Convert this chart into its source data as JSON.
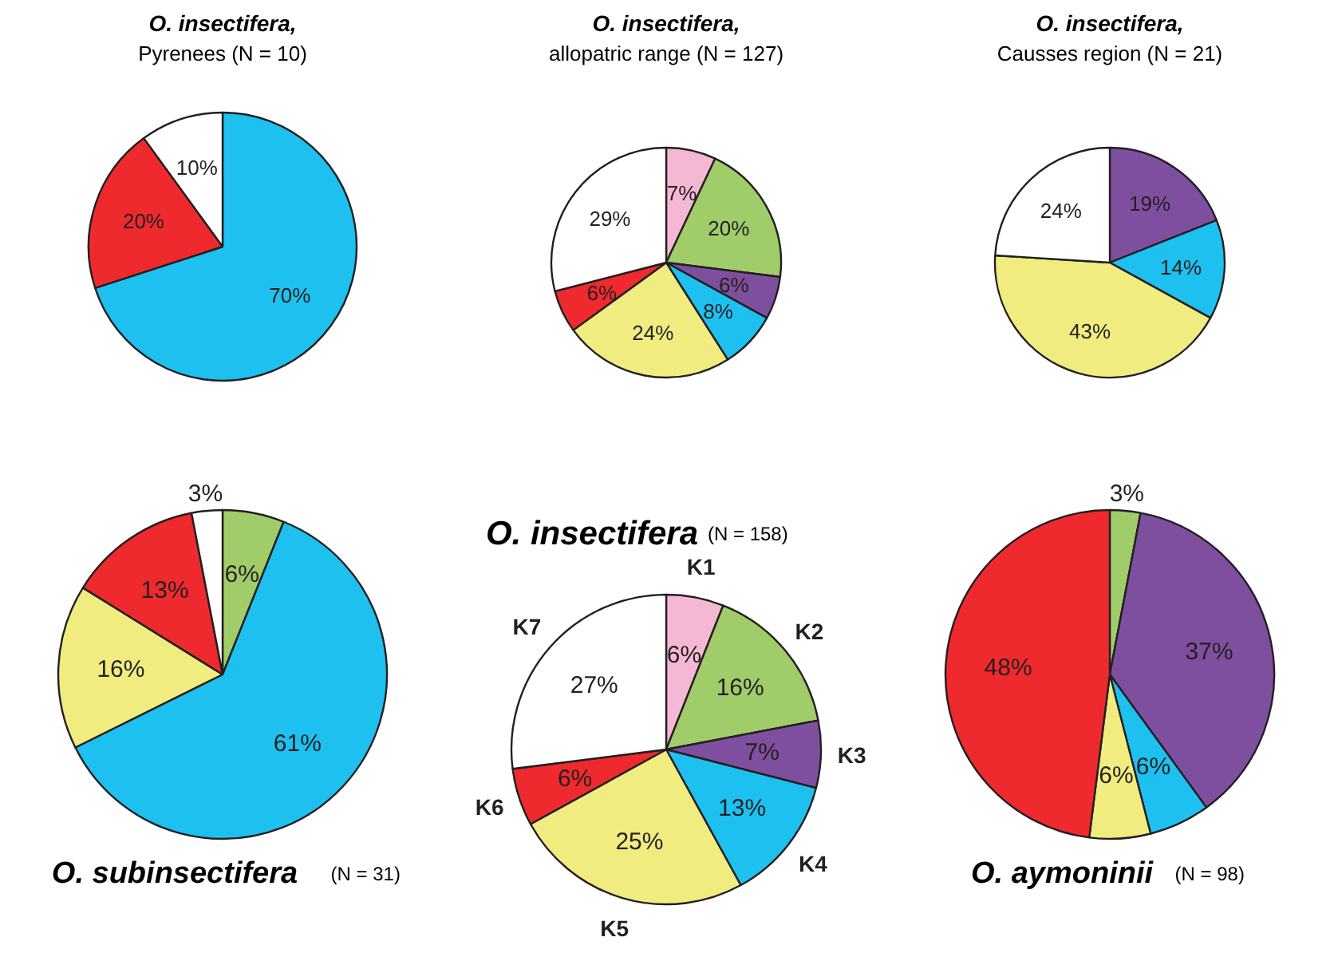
{
  "chart_data": [
    {
      "type": "pie",
      "title": "O. insectifera,",
      "subtitle": "Pyrenees (N = 10)",
      "categories": [
        null,
        null,
        null
      ],
      "values": [
        70,
        20,
        10
      ],
      "value_labels": [
        "70%",
        "20%",
        "10%"
      ],
      "colors": [
        "#1ec0f0",
        "#ee2a2e",
        "#ffffff"
      ]
    },
    {
      "type": "pie",
      "title": "O. insectifera,",
      "subtitle": "allopatric range (N = 127)",
      "categories": [
        null,
        null,
        null,
        null,
        null,
        null,
        null
      ],
      "values": [
        7,
        20,
        6,
        8,
        24,
        6,
        29
      ],
      "value_labels": [
        "7%",
        "20%",
        "6%",
        "8%",
        "24%",
        "6%",
        "29%"
      ],
      "colors": [
        "#f4b8d4",
        "#a0cc6a",
        "#7f4f9f",
        "#1ec0f0",
        "#f0ec80",
        "#ee2a2e",
        "#ffffff"
      ]
    },
    {
      "type": "pie",
      "title": "O. insectifera,",
      "subtitle": "Causses region (N = 21)",
      "categories": [
        null,
        null,
        null,
        null
      ],
      "values": [
        19,
        14,
        43,
        24
      ],
      "value_labels": [
        "19%",
        "14%",
        "43%",
        "24%"
      ],
      "colors": [
        "#7f4f9f",
        "#1ec0f0",
        "#f0ec80",
        "#ffffff"
      ]
    },
    {
      "type": "pie",
      "title": "O. subinsectifera",
      "subtitle": "(N = 31)",
      "categories": [
        null,
        null,
        null,
        null,
        null
      ],
      "values": [
        6,
        61,
        16,
        13,
        3
      ],
      "value_labels": [
        "6%",
        "61%",
        "16%",
        "13%",
        "3%"
      ],
      "colors": [
        "#a0cc6a",
        "#1ec0f0",
        "#f0ec80",
        "#ee2a2e",
        "#ffffff"
      ]
    },
    {
      "type": "pie",
      "title": "O. insectifera",
      "subtitle": "(N = 158)",
      "categories": [
        "K1",
        "K2",
        "K3",
        "K4",
        "K5",
        "K6",
        "K7"
      ],
      "values": [
        6,
        16,
        7,
        13,
        25,
        6,
        27
      ],
      "value_labels": [
        "6%",
        "16%",
        "7%",
        "13%",
        "25%",
        "6%",
        "27%"
      ],
      "colors": [
        "#f4b8d4",
        "#a0cc6a",
        "#7f4f9f",
        "#1ec0f0",
        "#f0ec80",
        "#ee2a2e",
        "#ffffff"
      ]
    },
    {
      "type": "pie",
      "title": "O. aymoninii",
      "subtitle": "(N = 98)",
      "categories": [
        null,
        null,
        null,
        null,
        null
      ],
      "values": [
        3,
        37,
        6,
        6,
        48
      ],
      "value_labels": [
        "3%",
        "37%",
        "6%",
        "6%",
        "48%"
      ],
      "colors": [
        "#a0cc6a",
        "#7f4f9f",
        "#1ec0f0",
        "#f0ec80",
        "#ee2a2e"
      ]
    }
  ]
}
